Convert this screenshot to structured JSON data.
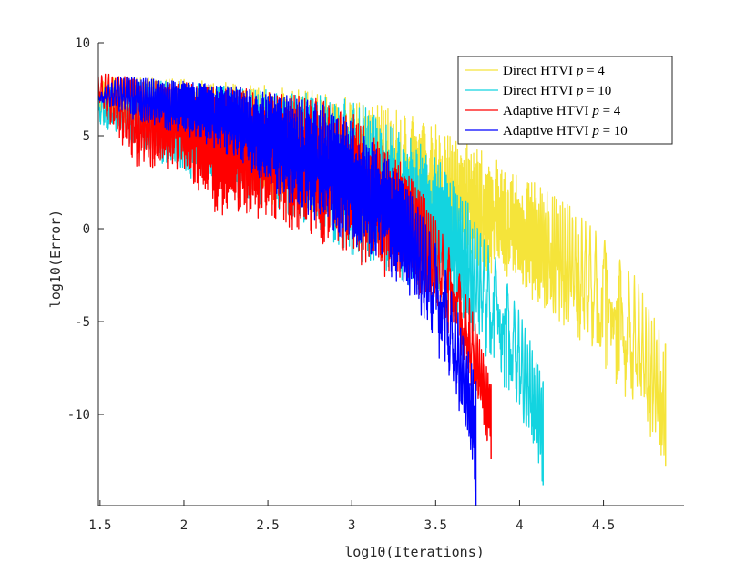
{
  "chart_data": {
    "type": "line",
    "title": "",
    "xlabel": "log10(Iterations)",
    "ylabel": "log10(Error)",
    "xlim": [
      1.49,
      4.98
    ],
    "ylim": [
      -14.9,
      10
    ],
    "x_ticks": [
      1.5,
      2,
      2.5,
      3,
      3.5,
      4,
      4.5
    ],
    "x_tick_labels": [
      "1.5",
      "2",
      "2.5",
      "3",
      "3.5",
      "4",
      "4.5"
    ],
    "y_ticks": [
      -10,
      -5,
      0,
      5,
      10
    ],
    "y_tick_labels": [
      "-10",
      "-5",
      "0",
      "5",
      "10"
    ],
    "legend_position": "top-right",
    "series": [
      {
        "name": "Direct HTVI p = 4",
        "legend_prefix": "Direct HTVI ",
        "legend_var": "p",
        "legend_eq": " = 4",
        "color": "#F5E43A",
        "x_end": 4.87,
        "upper": [
          [
            1.49,
            8.1
          ],
          [
            1.8,
            8.1
          ],
          [
            2.1,
            8.0
          ],
          [
            2.5,
            7.7
          ],
          [
            2.8,
            7.4
          ],
          [
            3.0,
            7.1
          ],
          [
            3.2,
            6.6
          ],
          [
            3.5,
            5.6
          ],
          [
            3.8,
            4.2
          ],
          [
            4.1,
            2.5
          ],
          [
            4.4,
            0.6
          ],
          [
            4.7,
            -2.7
          ],
          [
            4.87,
            -6.2
          ]
        ],
        "lower": [
          [
            1.49,
            5.8
          ],
          [
            1.8,
            5.2
          ],
          [
            2.0,
            3.6
          ],
          [
            2.3,
            2.0
          ],
          [
            2.6,
            1.0
          ],
          [
            2.9,
            0.5
          ],
          [
            3.2,
            -0.4
          ],
          [
            3.5,
            -1.5
          ],
          [
            3.8,
            -2.5
          ],
          [
            4.1,
            -4.2
          ],
          [
            4.4,
            -6.5
          ],
          [
            4.6,
            -8.8
          ],
          [
            4.87,
            -12.8
          ]
        ]
      },
      {
        "name": "Direct HTVI p = 10",
        "legend_prefix": "Direct HTVI ",
        "legend_var": "p",
        "legend_eq": " = 10",
        "color": "#13D4E0",
        "x_end": 4.14,
        "upper": [
          [
            1.49,
            7.5
          ],
          [
            1.8,
            8.0
          ],
          [
            2.1,
            7.8
          ],
          [
            2.5,
            7.5
          ],
          [
            2.8,
            7.3
          ],
          [
            3.0,
            6.9
          ],
          [
            3.2,
            6.2
          ],
          [
            3.5,
            4.0
          ],
          [
            3.7,
            1.3
          ],
          [
            3.9,
            -2.3
          ],
          [
            4.05,
            -5.6
          ],
          [
            4.14,
            -8.2
          ]
        ],
        "lower": [
          [
            1.49,
            5.6
          ],
          [
            1.8,
            3.8
          ],
          [
            2.0,
            2.8
          ],
          [
            2.3,
            1.6
          ],
          [
            2.6,
            0.8
          ],
          [
            2.8,
            -0.3
          ],
          [
            3.0,
            -1.7
          ],
          [
            3.2,
            -2.5
          ],
          [
            3.4,
            -3.3
          ],
          [
            3.6,
            -5.0
          ],
          [
            3.8,
            -7.0
          ],
          [
            4.0,
            -9.8
          ],
          [
            4.14,
            -13.8
          ]
        ]
      },
      {
        "name": "Adaptive HTVI p = 4",
        "legend_prefix": "Adaptive HTVI ",
        "legend_var": "p",
        "legend_eq": " = 4",
        "color": "#FF0000",
        "x_end": 3.83,
        "upper": [
          [
            1.49,
            8.4
          ],
          [
            1.8,
            8.0
          ],
          [
            2.1,
            7.8
          ],
          [
            2.5,
            7.4
          ],
          [
            2.8,
            7.0
          ],
          [
            3.0,
            6.3
          ],
          [
            3.2,
            4.6
          ],
          [
            3.4,
            2.3
          ],
          [
            3.55,
            -0.3
          ],
          [
            3.7,
            -3.7
          ],
          [
            3.83,
            -8.4
          ]
        ],
        "lower": [
          [
            1.49,
            6.6
          ],
          [
            1.7,
            3.3
          ],
          [
            2.0,
            3.0
          ],
          [
            2.2,
            0.7
          ],
          [
            2.5,
            0.4
          ],
          [
            2.7,
            -0.5
          ],
          [
            2.9,
            -1.5
          ],
          [
            3.1,
            -2.2
          ],
          [
            3.3,
            -3.0
          ],
          [
            3.5,
            -4.5
          ],
          [
            3.65,
            -7.0
          ],
          [
            3.75,
            -9.5
          ],
          [
            3.83,
            -12.4
          ]
        ]
      },
      {
        "name": "Adaptive HTVI p = 10",
        "legend_prefix": "Adaptive HTVI ",
        "legend_var": "p",
        "legend_eq": " = 10",
        "color": "#0000FF",
        "x_end": 3.74,
        "upper": [
          [
            1.49,
            7.2
          ],
          [
            1.6,
            8.2
          ],
          [
            1.9,
            8.0
          ],
          [
            2.2,
            7.8
          ],
          [
            2.5,
            7.4
          ],
          [
            2.8,
            6.8
          ],
          [
            3.0,
            5.8
          ],
          [
            3.2,
            4.0
          ],
          [
            3.4,
            1.3
          ],
          [
            3.55,
            -1.8
          ],
          [
            3.65,
            -5.0
          ],
          [
            3.74,
            -8.2
          ]
        ],
        "lower": [
          [
            1.49,
            6.9
          ],
          [
            1.7,
            5.8
          ],
          [
            2.0,
            5.0
          ],
          [
            2.3,
            3.8
          ],
          [
            2.6,
            1.5
          ],
          [
            2.8,
            0.3
          ],
          [
            3.0,
            -1.0
          ],
          [
            3.2,
            -2.2
          ],
          [
            3.35,
            -3.8
          ],
          [
            3.5,
            -6.5
          ],
          [
            3.6,
            -9.0
          ],
          [
            3.7,
            -12.0
          ],
          [
            3.74,
            -14.9
          ]
        ]
      }
    ]
  }
}
